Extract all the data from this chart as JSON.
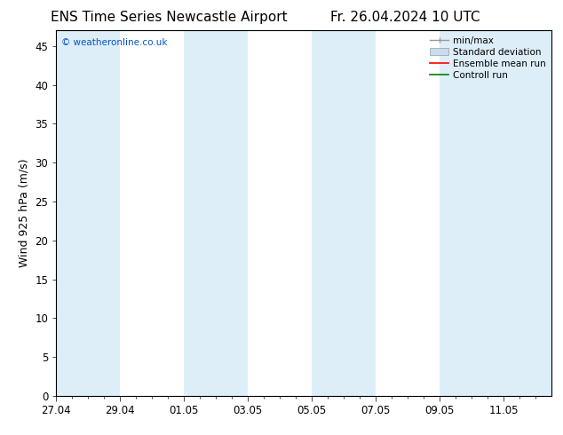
{
  "title_left": "ENS Time Series Newcastle Airport",
  "title_right": "Fr. 26.04.2024 10 UTC",
  "ylabel": "Wind 925 hPa (m/s)",
  "watermark": "© weatheronline.co.uk",
  "ylim": [
    0,
    47
  ],
  "yticks": [
    0,
    5,
    10,
    15,
    20,
    25,
    30,
    35,
    40,
    45
  ],
  "xtick_labels": [
    "27.04",
    "29.04",
    "01.05",
    "03.05",
    "05.05",
    "07.05",
    "09.05",
    "11.05"
  ],
  "xtick_positions": [
    0,
    2,
    4,
    6,
    8,
    10,
    12,
    14
  ],
  "xlim": [
    0,
    15.5
  ],
  "bg_color": "#ffffff",
  "plot_bg_color": "#ffffff",
  "shaded_band_color": "#ddeef8",
  "shaded_bands": [
    [
      0,
      2
    ],
    [
      4,
      6
    ],
    [
      8,
      10
    ],
    [
      12,
      15.5
    ]
  ],
  "legend_entries": [
    "min/max",
    "Standard deviation",
    "Ensemble mean run",
    "Controll run"
  ],
  "minmax_color": "#999999",
  "std_color": "#c8ddf0",
  "ensemble_color": "#ff0000",
  "control_color": "#008000",
  "title_fontsize": 11,
  "ylabel_fontsize": 9,
  "tick_fontsize": 8.5,
  "legend_fontsize": 7.5,
  "watermark_fontsize": 7.5,
  "watermark_color": "#0055cc"
}
